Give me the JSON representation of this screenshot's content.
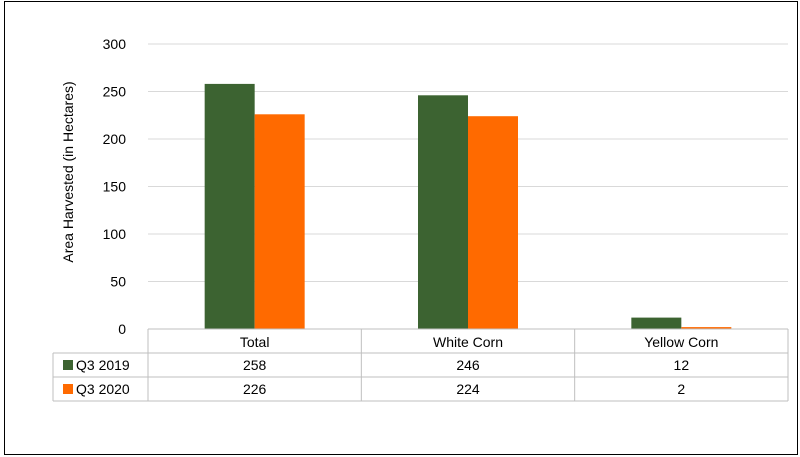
{
  "chart_data": {
    "type": "bar",
    "ylabel": "Area Harvested (in Hectares)",
    "categories": [
      "Total",
      "White Corn",
      "Yellow Corn"
    ],
    "yticks": [
      "0",
      "50",
      "100",
      "150",
      "200",
      "250",
      "300"
    ],
    "ylim": [
      0,
      300
    ],
    "grid": true,
    "legend": "data table below chart",
    "series": [
      {
        "name": "Q3 2019",
        "color": "#3c6331",
        "values": [
          258,
          246,
          12
        ],
        "labels": [
          "258",
          "246",
          "12"
        ]
      },
      {
        "name": "Q3 2020",
        "color": "#ff6a00",
        "values": [
          226,
          224,
          2
        ],
        "labels": [
          "226",
          "224",
          "2"
        ]
      }
    ]
  }
}
